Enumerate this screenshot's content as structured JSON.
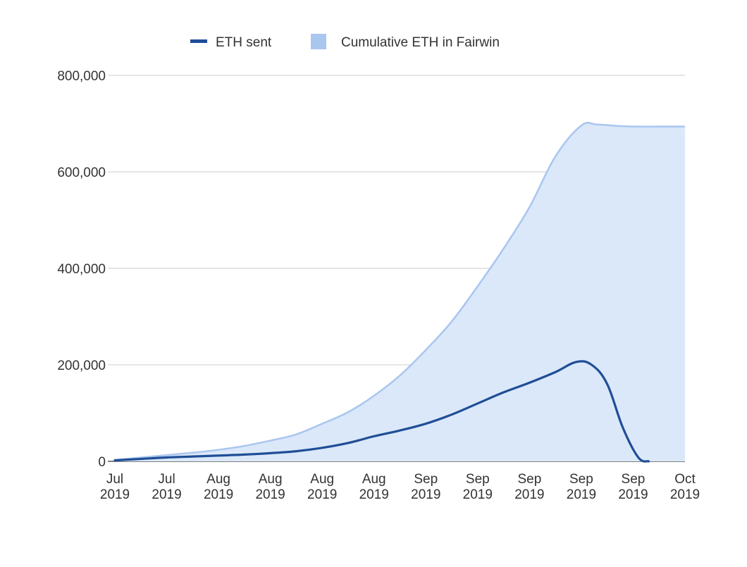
{
  "chart_data": {
    "type": "area",
    "legend_position": "top",
    "grid": true,
    "ylim": [
      0,
      800000
    ],
    "y_ticks": [
      {
        "value": 0,
        "label": "0"
      },
      {
        "value": 200000,
        "label": "200,000"
      },
      {
        "value": 400000,
        "label": "400,000"
      },
      {
        "value": 600000,
        "label": "600,000"
      },
      {
        "value": 800000,
        "label": "800,000"
      }
    ],
    "x_ticks": [
      {
        "month": "Jul",
        "year": "2019"
      },
      {
        "month": "Jul",
        "year": "2019"
      },
      {
        "month": "Aug",
        "year": "2019"
      },
      {
        "month": "Aug",
        "year": "2019"
      },
      {
        "month": "Aug",
        "year": "2019"
      },
      {
        "month": "Aug",
        "year": "2019"
      },
      {
        "month": "Sep",
        "year": "2019"
      },
      {
        "month": "Sep",
        "year": "2019"
      },
      {
        "month": "Sep",
        "year": "2019"
      },
      {
        "month": "Sep",
        "year": "2019"
      },
      {
        "month": "Sep",
        "year": "2019"
      },
      {
        "month": "Oct",
        "year": "2019"
      }
    ],
    "series": [
      {
        "name": "ETH sent",
        "kind": "line",
        "color": "#1f4e96",
        "points": [
          [
            0,
            2000
          ],
          [
            0.5,
            5000
          ],
          [
            1,
            8000
          ],
          [
            1.5,
            10000
          ],
          [
            2,
            12000
          ],
          [
            2.5,
            14000
          ],
          [
            3,
            17000
          ],
          [
            3.5,
            21000
          ],
          [
            4,
            28000
          ],
          [
            4.5,
            38000
          ],
          [
            5,
            52000
          ],
          [
            5.5,
            64000
          ],
          [
            6,
            78000
          ],
          [
            6.5,
            97000
          ],
          [
            7,
            120000
          ],
          [
            7.5,
            143000
          ],
          [
            8,
            163000
          ],
          [
            8.5,
            185000
          ],
          [
            8.9,
            206000
          ],
          [
            9.2,
            200000
          ],
          [
            9.5,
            160000
          ],
          [
            9.8,
            70000
          ],
          [
            10.1,
            8000
          ],
          [
            10.3,
            0
          ]
        ]
      },
      {
        "name": "Cumulative ETH in Fairwin",
        "kind": "area",
        "color": "#a9c6ef",
        "fill": "#dbe8f9",
        "points": [
          [
            0,
            3000
          ],
          [
            0.5,
            8000
          ],
          [
            1,
            13000
          ],
          [
            1.5,
            18000
          ],
          [
            2,
            24000
          ],
          [
            2.5,
            32000
          ],
          [
            3,
            43000
          ],
          [
            3.5,
            56000
          ],
          [
            4,
            78000
          ],
          [
            4.5,
            102000
          ],
          [
            5,
            136000
          ],
          [
            5.5,
            178000
          ],
          [
            6,
            231000
          ],
          [
            6.5,
            290000
          ],
          [
            7,
            363000
          ],
          [
            7.5,
            441000
          ],
          [
            8,
            527000
          ],
          [
            8.5,
            632000
          ],
          [
            9,
            696000
          ],
          [
            9.3,
            698000
          ],
          [
            9.6,
            696000
          ],
          [
            10,
            694000
          ],
          [
            11,
            694000
          ]
        ]
      }
    ]
  },
  "legend": {
    "items": [
      {
        "label": "ETH sent",
        "color": "#1f4e96",
        "shape": "line"
      },
      {
        "label": "Cumulative ETH in Fairwin",
        "color": "#a9c6ef",
        "shape": "square"
      }
    ]
  }
}
